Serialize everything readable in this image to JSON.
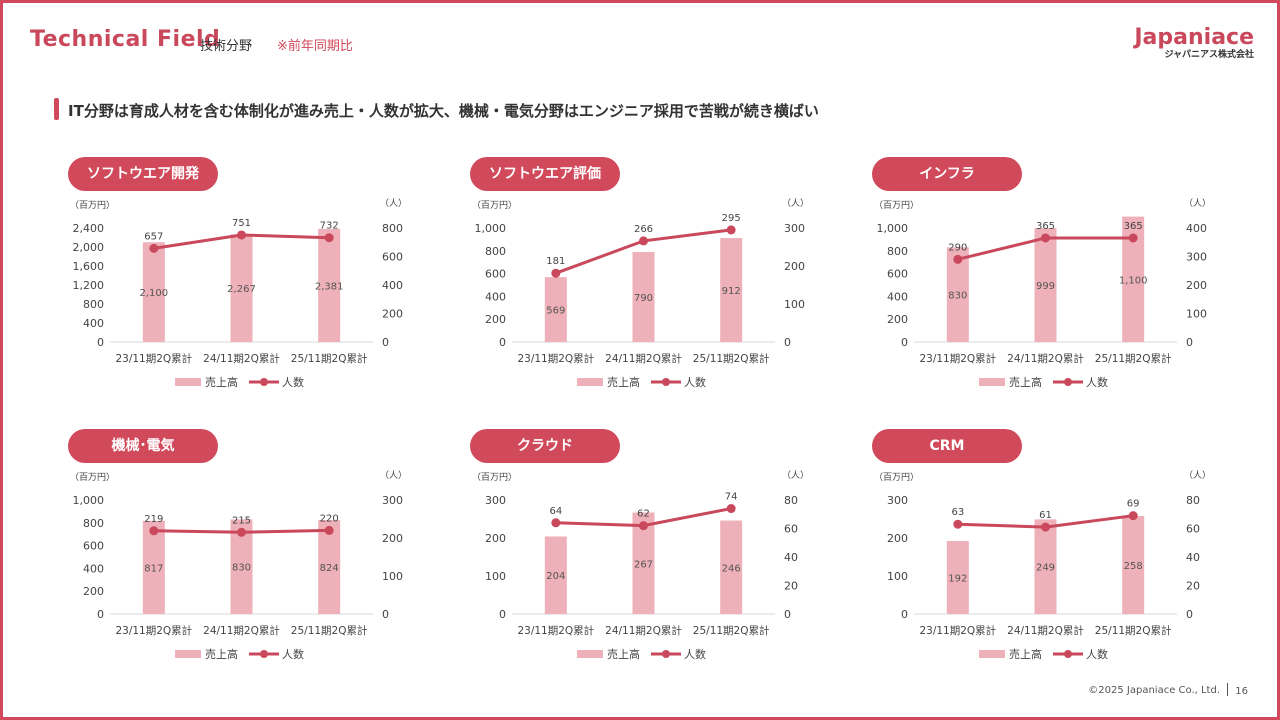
{
  "header": {
    "title": "Technical Field",
    "subtitle": "技術分野",
    "note": "※前年同期比"
  },
  "logo": {
    "main": "Japaniace",
    "sub": "ジャパニアス株式会社"
  },
  "headline": "IT分野は育成人材を含む体制化が進み売上・人数が拡大、機械・電気分野はエンジニア採用で苦戦が続き横ばい",
  "footer": {
    "copyright": "©2025 Japaniace Co., Ltd.",
    "page": "16"
  },
  "colors": {
    "accent": "#d14a5c",
    "bar": "#eeb1b9",
    "line": "#c9485b"
  },
  "chart_data": [
    {
      "type": "bar",
      "title": "ソフトウエア開発",
      "left_unit": "（百万円）",
      "right_unit": "（人）",
      "categories": [
        "23/11期2Q累計",
        "24/11期2Q累計",
        "25/11期2Q累計"
      ],
      "series": [
        {
          "name": "売上高",
          "kind": "bar",
          "axis": "left",
          "values": [
            2100,
            2267,
            2381
          ],
          "labels": [
            "2,100",
            "2,267",
            "2,381"
          ]
        },
        {
          "name": "人数",
          "kind": "line",
          "axis": "right",
          "values": [
            657,
            751,
            732
          ],
          "labels": [
            "657",
            "751",
            "732"
          ]
        }
      ],
      "ylim_left": [
        0,
        2400
      ],
      "left_ticks": [
        "0",
        "400",
        "800",
        "1,200",
        "1,600",
        "2,000",
        "2,400"
      ],
      "ylim_right": [
        0,
        800
      ],
      "right_ticks": [
        "0",
        "200",
        "400",
        "600",
        "800"
      ],
      "legend": "bottom"
    },
    {
      "type": "bar",
      "title": "ソフトウエア評価",
      "left_unit": "（百万円）",
      "right_unit": "（人）",
      "categories": [
        "23/11期2Q累計",
        "24/11期2Q累計",
        "25/11期2Q累計"
      ],
      "series": [
        {
          "name": "売上高",
          "kind": "bar",
          "axis": "left",
          "values": [
            569,
            790,
            912
          ],
          "labels": [
            "569",
            "790",
            "912"
          ]
        },
        {
          "name": "人数",
          "kind": "line",
          "axis": "right",
          "values": [
            181,
            266,
            295
          ],
          "labels": [
            "181",
            "266",
            "295"
          ]
        }
      ],
      "ylim_left": [
        0,
        1000
      ],
      "left_ticks": [
        "0",
        "200",
        "400",
        "600",
        "800",
        "1,000"
      ],
      "ylim_right": [
        0,
        300
      ],
      "right_ticks": [
        "0",
        "100",
        "200",
        "300"
      ],
      "legend": "bottom"
    },
    {
      "type": "bar",
      "title": "インフラ",
      "left_unit": "（百万円）",
      "right_unit": "（人）",
      "categories": [
        "23/11期2Q累計",
        "24/11期2Q累計",
        "25/11期2Q累計"
      ],
      "series": [
        {
          "name": "売上高",
          "kind": "bar",
          "axis": "left",
          "values": [
            830,
            999,
            1100
          ],
          "labels": [
            "830",
            "999",
            "1,100"
          ]
        },
        {
          "name": "人数",
          "kind": "line",
          "axis": "right",
          "values": [
            290,
            365,
            365
          ],
          "labels": [
            "290",
            "365",
            "365"
          ]
        }
      ],
      "ylim_left": [
        0,
        1000
      ],
      "left_ticks": [
        "0",
        "200",
        "400",
        "600",
        "800",
        "1,000"
      ],
      "ylim_right": [
        0,
        400
      ],
      "right_ticks": [
        "0",
        "100",
        "200",
        "300",
        "400"
      ],
      "legend": "bottom"
    },
    {
      "type": "bar",
      "title": "機械･電気",
      "left_unit": "（百万円）",
      "right_unit": "（人）",
      "categories": [
        "23/11期2Q累計",
        "24/11期2Q累計",
        "25/11期2Q累計"
      ],
      "series": [
        {
          "name": "売上高",
          "kind": "bar",
          "axis": "left",
          "values": [
            817,
            830,
            824
          ],
          "labels": [
            "817",
            "830",
            "824"
          ]
        },
        {
          "name": "人数",
          "kind": "line",
          "axis": "right",
          "values": [
            219,
            215,
            220
          ],
          "labels": [
            "219",
            "215",
            "220"
          ]
        }
      ],
      "ylim_left": [
        0,
        1000
      ],
      "left_ticks": [
        "0",
        "200",
        "400",
        "600",
        "800",
        "1,000"
      ],
      "ylim_right": [
        0,
        300
      ],
      "right_ticks": [
        "0",
        "100",
        "200",
        "300"
      ],
      "legend": "bottom"
    },
    {
      "type": "bar",
      "title": "クラウド",
      "left_unit": "（百万円）",
      "right_unit": "（人）",
      "categories": [
        "23/11期2Q累計",
        "24/11期2Q累計",
        "25/11期2Q累計"
      ],
      "series": [
        {
          "name": "売上高",
          "kind": "bar",
          "axis": "left",
          "values": [
            204,
            267,
            246
          ],
          "labels": [
            "204",
            "267",
            "246"
          ]
        },
        {
          "name": "人数",
          "kind": "line",
          "axis": "right",
          "values": [
            64,
            62,
            74
          ],
          "labels": [
            "64",
            "62",
            "74"
          ]
        }
      ],
      "ylim_left": [
        0,
        300
      ],
      "left_ticks": [
        "0",
        "100",
        "200",
        "300"
      ],
      "ylim_right": [
        0,
        80
      ],
      "right_ticks": [
        "0",
        "20",
        "40",
        "60",
        "80"
      ],
      "legend": "bottom"
    },
    {
      "type": "bar",
      "title": "CRM",
      "left_unit": "（百万円）",
      "right_unit": "（人）",
      "categories": [
        "23/11期2Q累計",
        "24/11期2Q累計",
        "25/11期2Q累計"
      ],
      "series": [
        {
          "name": "売上高",
          "kind": "bar",
          "axis": "left",
          "values": [
            192,
            249,
            258
          ],
          "labels": [
            "192",
            "249",
            "258"
          ]
        },
        {
          "name": "人数",
          "kind": "line",
          "axis": "right",
          "values": [
            63,
            61,
            69
          ],
          "labels": [
            "63",
            "61",
            "69"
          ]
        }
      ],
      "ylim_left": [
        0,
        300
      ],
      "left_ticks": [
        "0",
        "100",
        "200",
        "300"
      ],
      "ylim_right": [
        0,
        80
      ],
      "right_ticks": [
        "0",
        "20",
        "40",
        "60",
        "80"
      ],
      "legend": "bottom"
    }
  ]
}
